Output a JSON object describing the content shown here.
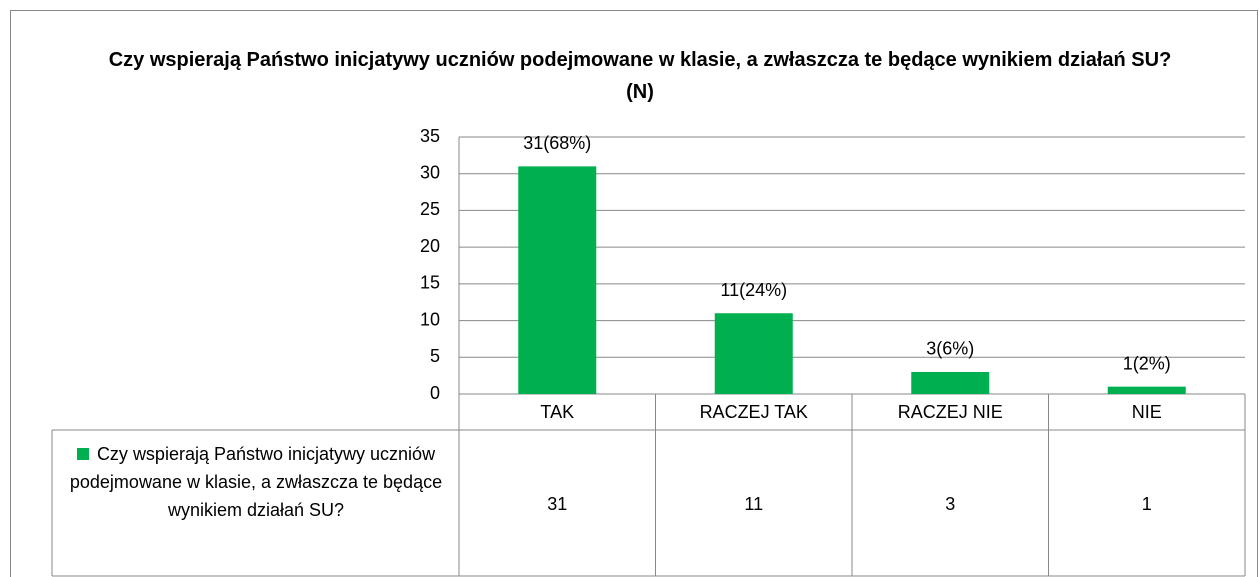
{
  "chart_data": {
    "type": "bar",
    "title": "Czy wspierają Państwo inicjatywy uczniów podejmowane w klasie, a zwłaszcza te będące wynikiem działań SU? (N)",
    "categories": [
      "TAK",
      "RACZEJ TAK",
      "RACZEJ NIE",
      "NIE"
    ],
    "series": [
      {
        "name": "Czy wspierają Państwo inicjatywy uczniów podejmowane w klasie, a zwłaszcza te będące wynikiem działań SU?",
        "color": "#00b050",
        "values": [
          31,
          11,
          3,
          1
        ],
        "value_labels": [
          "31(68%)",
          "11(24%)",
          "3(6%)",
          "1(2%)"
        ]
      }
    ],
    "ylim": [
      0,
      35
    ],
    "yticks": [
      0,
      5,
      10,
      15,
      20,
      25,
      30,
      35
    ],
    "grid": true
  }
}
